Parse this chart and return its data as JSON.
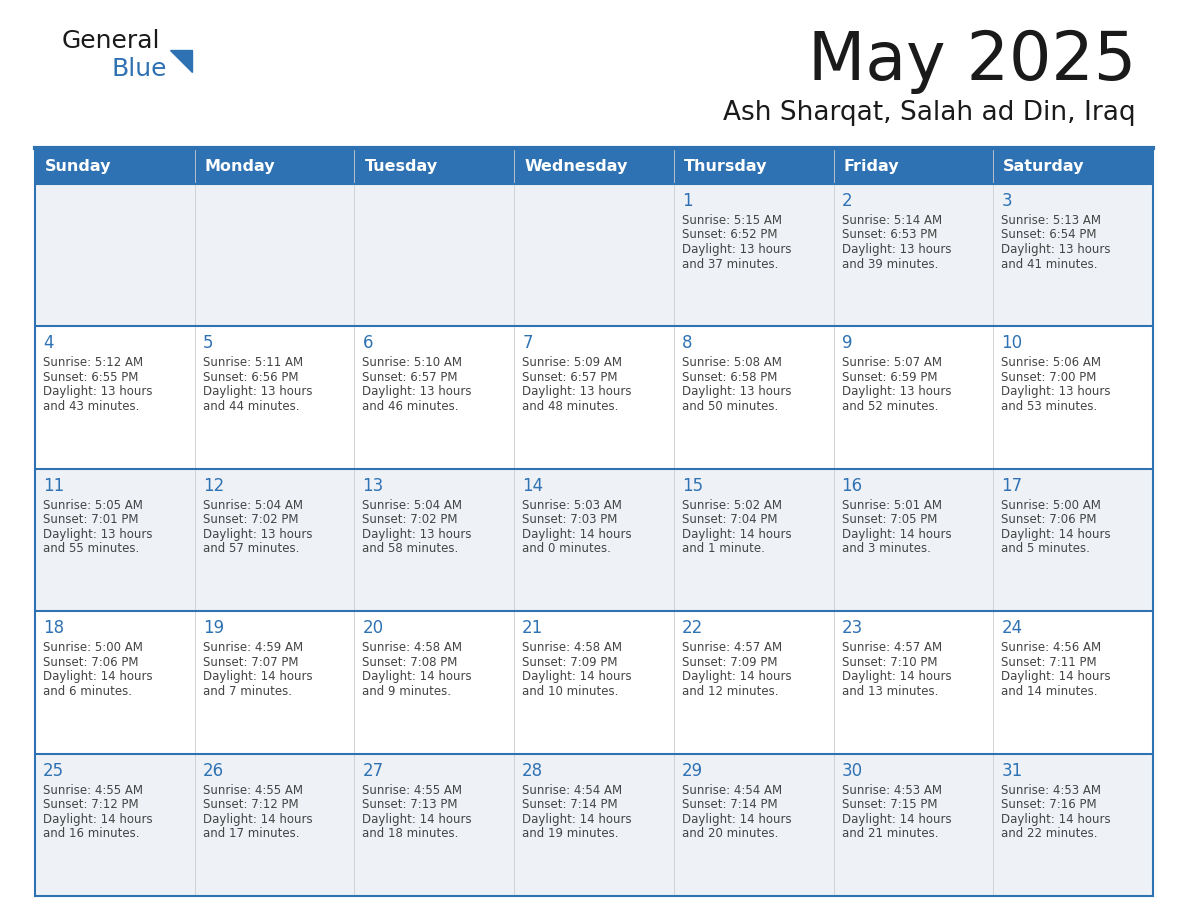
{
  "title": "May 2025",
  "subtitle": "Ash Sharqat, Salah ad Din, Iraq",
  "days_of_week": [
    "Sunday",
    "Monday",
    "Tuesday",
    "Wednesday",
    "Thursday",
    "Friday",
    "Saturday"
  ],
  "header_bg": "#2F72B3",
  "header_text_color": "#FFFFFF",
  "row_bg_odd": "#EEF2F7",
  "row_bg_even": "#FFFFFF",
  "day_number_color": "#2F72B3",
  "text_color": "#444444",
  "line_color": "#2F72B3",
  "logo_general_color": "#1a1a1a",
  "logo_blue_color": "#2F72B3",
  "title_color": "#1a1a1a",
  "subtitle_color": "#1a1a1a",
  "calendar_data": [
    [
      null,
      null,
      null,
      null,
      {
        "day": 1,
        "sunrise": "5:15 AM",
        "sunset": "6:52 PM",
        "daylight": "13 hours",
        "daylight2": "and 37 minutes."
      },
      {
        "day": 2,
        "sunrise": "5:14 AM",
        "sunset": "6:53 PM",
        "daylight": "13 hours",
        "daylight2": "and 39 minutes."
      },
      {
        "day": 3,
        "sunrise": "5:13 AM",
        "sunset": "6:54 PM",
        "daylight": "13 hours",
        "daylight2": "and 41 minutes."
      }
    ],
    [
      {
        "day": 4,
        "sunrise": "5:12 AM",
        "sunset": "6:55 PM",
        "daylight": "13 hours",
        "daylight2": "and 43 minutes."
      },
      {
        "day": 5,
        "sunrise": "5:11 AM",
        "sunset": "6:56 PM",
        "daylight": "13 hours",
        "daylight2": "and 44 minutes."
      },
      {
        "day": 6,
        "sunrise": "5:10 AM",
        "sunset": "6:57 PM",
        "daylight": "13 hours",
        "daylight2": "and 46 minutes."
      },
      {
        "day": 7,
        "sunrise": "5:09 AM",
        "sunset": "6:57 PM",
        "daylight": "13 hours",
        "daylight2": "and 48 minutes."
      },
      {
        "day": 8,
        "sunrise": "5:08 AM",
        "sunset": "6:58 PM",
        "daylight": "13 hours",
        "daylight2": "and 50 minutes."
      },
      {
        "day": 9,
        "sunrise": "5:07 AM",
        "sunset": "6:59 PM",
        "daylight": "13 hours",
        "daylight2": "and 52 minutes."
      },
      {
        "day": 10,
        "sunrise": "5:06 AM",
        "sunset": "7:00 PM",
        "daylight": "13 hours",
        "daylight2": "and 53 minutes."
      }
    ],
    [
      {
        "day": 11,
        "sunrise": "5:05 AM",
        "sunset": "7:01 PM",
        "daylight": "13 hours",
        "daylight2": "and 55 minutes."
      },
      {
        "day": 12,
        "sunrise": "5:04 AM",
        "sunset": "7:02 PM",
        "daylight": "13 hours",
        "daylight2": "and 57 minutes."
      },
      {
        "day": 13,
        "sunrise": "5:04 AM",
        "sunset": "7:02 PM",
        "daylight": "13 hours",
        "daylight2": "and 58 minutes."
      },
      {
        "day": 14,
        "sunrise": "5:03 AM",
        "sunset": "7:03 PM",
        "daylight": "14 hours",
        "daylight2": "and 0 minutes."
      },
      {
        "day": 15,
        "sunrise": "5:02 AM",
        "sunset": "7:04 PM",
        "daylight": "14 hours",
        "daylight2": "and 1 minute."
      },
      {
        "day": 16,
        "sunrise": "5:01 AM",
        "sunset": "7:05 PM",
        "daylight": "14 hours",
        "daylight2": "and 3 minutes."
      },
      {
        "day": 17,
        "sunrise": "5:00 AM",
        "sunset": "7:06 PM",
        "daylight": "14 hours",
        "daylight2": "and 5 minutes."
      }
    ],
    [
      {
        "day": 18,
        "sunrise": "5:00 AM",
        "sunset": "7:06 PM",
        "daylight": "14 hours",
        "daylight2": "and 6 minutes."
      },
      {
        "day": 19,
        "sunrise": "4:59 AM",
        "sunset": "7:07 PM",
        "daylight": "14 hours",
        "daylight2": "and 7 minutes."
      },
      {
        "day": 20,
        "sunrise": "4:58 AM",
        "sunset": "7:08 PM",
        "daylight": "14 hours",
        "daylight2": "and 9 minutes."
      },
      {
        "day": 21,
        "sunrise": "4:58 AM",
        "sunset": "7:09 PM",
        "daylight": "14 hours",
        "daylight2": "and 10 minutes."
      },
      {
        "day": 22,
        "sunrise": "4:57 AM",
        "sunset": "7:09 PM",
        "daylight": "14 hours",
        "daylight2": "and 12 minutes."
      },
      {
        "day": 23,
        "sunrise": "4:57 AM",
        "sunset": "7:10 PM",
        "daylight": "14 hours",
        "daylight2": "and 13 minutes."
      },
      {
        "day": 24,
        "sunrise": "4:56 AM",
        "sunset": "7:11 PM",
        "daylight": "14 hours",
        "daylight2": "and 14 minutes."
      }
    ],
    [
      {
        "day": 25,
        "sunrise": "4:55 AM",
        "sunset": "7:12 PM",
        "daylight": "14 hours",
        "daylight2": "and 16 minutes."
      },
      {
        "day": 26,
        "sunrise": "4:55 AM",
        "sunset": "7:12 PM",
        "daylight": "14 hours",
        "daylight2": "and 17 minutes."
      },
      {
        "day": 27,
        "sunrise": "4:55 AM",
        "sunset": "7:13 PM",
        "daylight": "14 hours",
        "daylight2": "and 18 minutes."
      },
      {
        "day": 28,
        "sunrise": "4:54 AM",
        "sunset": "7:14 PM",
        "daylight": "14 hours",
        "daylight2": "and 19 minutes."
      },
      {
        "day": 29,
        "sunrise": "4:54 AM",
        "sunset": "7:14 PM",
        "daylight": "14 hours",
        "daylight2": "and 20 minutes."
      },
      {
        "day": 30,
        "sunrise": "4:53 AM",
        "sunset": "7:15 PM",
        "daylight": "14 hours",
        "daylight2": "and 21 minutes."
      },
      {
        "day": 31,
        "sunrise": "4:53 AM",
        "sunset": "7:16 PM",
        "daylight": "14 hours",
        "daylight2": "and 22 minutes."
      }
    ]
  ]
}
